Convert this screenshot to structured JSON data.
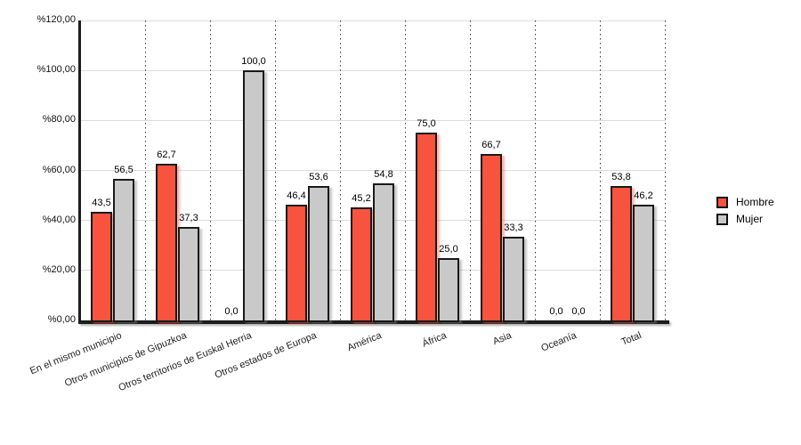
{
  "chart_data": {
    "type": "bar",
    "title": "",
    "xlabel": "",
    "ylabel": "",
    "categories": [
      "En el mismo municipio",
      "Otros municipios de Gipuzkoa",
      "Otros territorios de Euskal Herria",
      "Otros estados de Europa",
      "América",
      "África",
      "Asia",
      "Oceanía",
      "Total"
    ],
    "series": [
      {
        "name": "Hombre",
        "color": "#F8533E",
        "values": [
          43.5,
          62.7,
          0.0,
          46.4,
          45.2,
          75.0,
          66.7,
          0.0,
          53.8
        ],
        "labels": [
          "43,5",
          "62,7",
          "0,0",
          "46,4",
          "45,2",
          "75,0",
          "66,7",
          "0,0",
          "53,8"
        ]
      },
      {
        "name": "Mujer",
        "color": "#C9C9C9",
        "values": [
          56.5,
          37.3,
          100.0,
          53.6,
          54.8,
          25.0,
          33.3,
          0.0,
          46.2
        ],
        "labels": [
          "56,5",
          "37,3",
          "100,0",
          "53,6",
          "54,8",
          "25,0",
          "33,3",
          "0,0",
          "46,2"
        ]
      }
    ],
    "y_axis": {
      "min": 0,
      "max": 120,
      "tick_values": [
        0,
        20,
        40,
        60,
        80,
        100,
        120
      ],
      "tick_labels": [
        "%0,00",
        "%20,00",
        "%40,00",
        "%60,00",
        "%80,00",
        "%100,00",
        "%120,00"
      ]
    },
    "legend": {
      "position": "right",
      "entries": [
        "Hombre",
        "Mujer"
      ]
    },
    "grid": {
      "horizontal": true,
      "vertical_dotted_separators": true
    },
    "colors": {
      "hombre": "#F8533E",
      "mujer": "#C9C9C9",
      "bar_border": "#1A1A1A",
      "gridline": "#DCDCDC",
      "axis": "#1C1C1C"
    }
  }
}
